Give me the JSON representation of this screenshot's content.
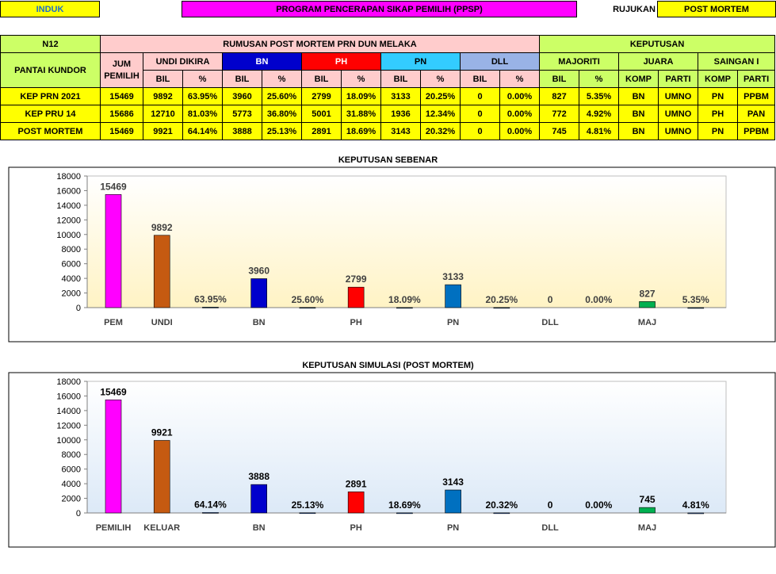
{
  "header": {
    "induk": "INDUK",
    "program": "PROGRAM PENCERAPAN SIKAP PEMILIH (PPSP)",
    "rujukan_label": "RUJUKAN",
    "rujukan_value": "POST MORTEM"
  },
  "table": {
    "seat": "N12",
    "area": "PANTAI KUNDOR",
    "group_title": "RUMUSAN POST MORTEM PRN DUN MELAKA",
    "result_title": "KEPUTUSAN",
    "jum_pemilih": "JUM PEMILIH",
    "undi_dikira": "UNDI DIKIRA",
    "party_bn": "BN",
    "party_ph": "PH",
    "party_pn": "PN",
    "party_dll": "DLL",
    "majoriti": "MAJORITI",
    "juara": "JUARA",
    "saingan": "SAINGAN I",
    "bil": "BIL",
    "pct": "%",
    "komp": "KOMP",
    "parti": "PARTI",
    "rows": [
      {
        "label": "KEP PRN 2021",
        "cells": [
          "15469",
          "9892",
          "63.95%",
          "3960",
          "25.60%",
          "2799",
          "18.09%",
          "3133",
          "20.25%",
          "0",
          "0.00%",
          "827",
          "5.35%",
          "BN",
          "UMNO",
          "PN",
          "PPBM"
        ]
      },
      {
        "label": "KEP PRU 14",
        "cells": [
          "15686",
          "12710",
          "81.03%",
          "5773",
          "36.80%",
          "5001",
          "31.88%",
          "1936",
          "12.34%",
          "0",
          "0.00%",
          "772",
          "4.92%",
          "BN",
          "UMNO",
          "PH",
          "PAN"
        ]
      },
      {
        "label": "POST MORTEM",
        "cells": [
          "15469",
          "9921",
          "64.14%",
          "3888",
          "25.13%",
          "2891",
          "18.69%",
          "3143",
          "20.32%",
          "0",
          "0.00%",
          "745",
          "4.81%",
          "BN",
          "UMNO",
          "PN",
          "PPBM"
        ]
      }
    ]
  },
  "chart_data": [
    {
      "type": "bar",
      "title": "KEPUTUSAN SEBENAR",
      "ylim": [
        0,
        18000
      ],
      "yticks": [
        0,
        2000,
        4000,
        6000,
        8000,
        10000,
        12000,
        14000,
        16000,
        18000
      ],
      "background": "#fff3c4",
      "categories": [
        "PEM",
        "UNDI",
        "",
        "BN",
        "",
        "PH",
        "",
        "PN",
        "",
        "DLL",
        "",
        "MAJ",
        ""
      ],
      "values": [
        15469,
        9892,
        63.95,
        3960,
        25.6,
        2799,
        18.09,
        3133,
        20.25,
        0,
        0.0,
        827,
        5.35
      ],
      "labels": [
        "15469",
        "9892",
        "63.95%",
        "3960",
        "25.60%",
        "2799",
        "18.09%",
        "3133",
        "20.25%",
        "0",
        "0.00%",
        "827",
        "5.35%"
      ],
      "colors": [
        "#ff00ff",
        "#c55a11",
        "#1f4e79",
        "#0000cc",
        "#1f4e79",
        "#ff0000",
        "#1f4e79",
        "#0070c0",
        "#1f4e79",
        "#1f4e79",
        "#1f4e79",
        "#00b050",
        "#1f4e79"
      ],
      "grid": false
    },
    {
      "type": "bar",
      "title": "KEPUTUSAN SIMULASI (POST MORTEM)",
      "ylim": [
        0,
        18000
      ],
      "yticks": [
        0,
        2000,
        4000,
        6000,
        8000,
        10000,
        12000,
        14000,
        16000,
        18000
      ],
      "background": "#dce9f7",
      "categories": [
        "PEMILIH",
        "KELUAR",
        "",
        "BN",
        "",
        "PH",
        "",
        "PN",
        "",
        "DLL",
        "",
        "MAJ",
        ""
      ],
      "values": [
        15469,
        9921,
        64.14,
        3888,
        25.13,
        2891,
        18.69,
        3143,
        20.32,
        0,
        0.0,
        745,
        4.81
      ],
      "labels": [
        "15469",
        "9921",
        "64.14%",
        "3888",
        "25.13%",
        "2891",
        "18.69%",
        "3143",
        "20.32%",
        "0",
        "0.00%",
        "745",
        "4.81%"
      ],
      "colors": [
        "#ff00ff",
        "#c55a11",
        "#4472c4",
        "#0000cc",
        "#4472c4",
        "#ff0000",
        "#4472c4",
        "#0070c0",
        "#4472c4",
        "#4472c4",
        "#4472c4",
        "#00b050",
        "#4472c4"
      ],
      "grid": false
    }
  ]
}
